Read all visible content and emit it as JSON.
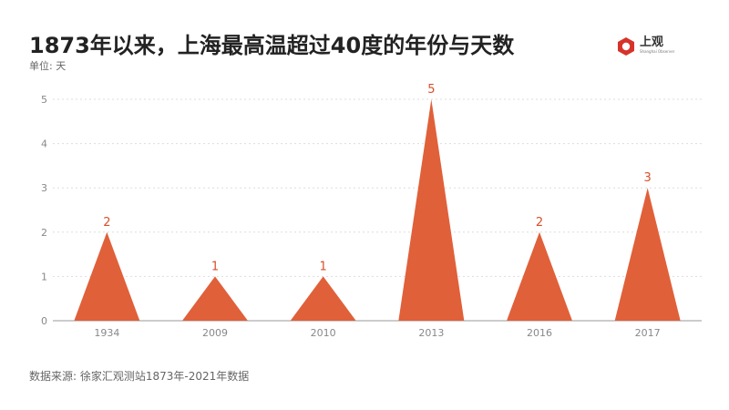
{
  "title": "1873年以来，上海最高温超过40度的年份与天数",
  "unit_label": "单位: 天",
  "source": "数据来源: 徐家汇观测站1873年-2021年数据",
  "logo": {
    "name": "上观",
    "sub": "Shanghai Observer",
    "icon": "hexagon-ring-icon"
  },
  "colors": {
    "bar": "#e0603a",
    "label": "#d94f2a",
    "grid": "#dddddd"
  },
  "chart_data": {
    "type": "bar",
    "mark_shape": "triangle",
    "categories": [
      "1934",
      "2009",
      "2010",
      "2013",
      "2016",
      "2017"
    ],
    "values": [
      2,
      1,
      1,
      5,
      2,
      3
    ],
    "ylim": [
      0,
      5
    ],
    "yticks": [
      "0",
      "1",
      "2",
      "3",
      "4",
      "5"
    ],
    "grid": true,
    "legend": "none"
  }
}
